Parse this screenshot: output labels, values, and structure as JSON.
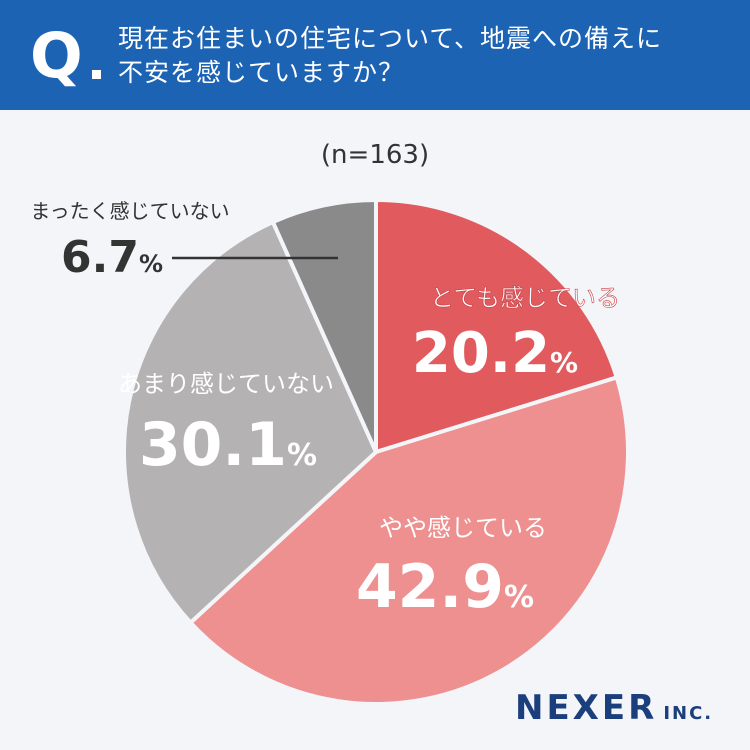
{
  "header": {
    "q_label": "Q",
    "question_line1": "現在お住まいの住宅について、地震への備えに",
    "question_line2": "不安を感じていますか？"
  },
  "sample_size": "(n=163)",
  "chart_data": {
    "type": "pie",
    "start_angle_deg": 0,
    "direction": "clockwise",
    "slices": [
      {
        "label": "とても感じている",
        "value": 20.2,
        "display": "20.2",
        "color": "#e05a5e",
        "text_color": "#ffffff"
      },
      {
        "label": "やや感じている",
        "value": 42.9,
        "display": "42.9",
        "color": "#ee8f90",
        "text_color": "#ffffff"
      },
      {
        "label": "あまり感じていない",
        "value": 30.1,
        "display": "30.1",
        "color": "#b4b2b3",
        "text_color": "#ffffff"
      },
      {
        "label": "まったく感じていない",
        "value": 6.7,
        "display": "6.7",
        "color": "#8a8a8a",
        "text_color": "#333333"
      }
    ],
    "unit": "%"
  },
  "logo": {
    "main": "NEXER",
    "sub": "INC."
  }
}
